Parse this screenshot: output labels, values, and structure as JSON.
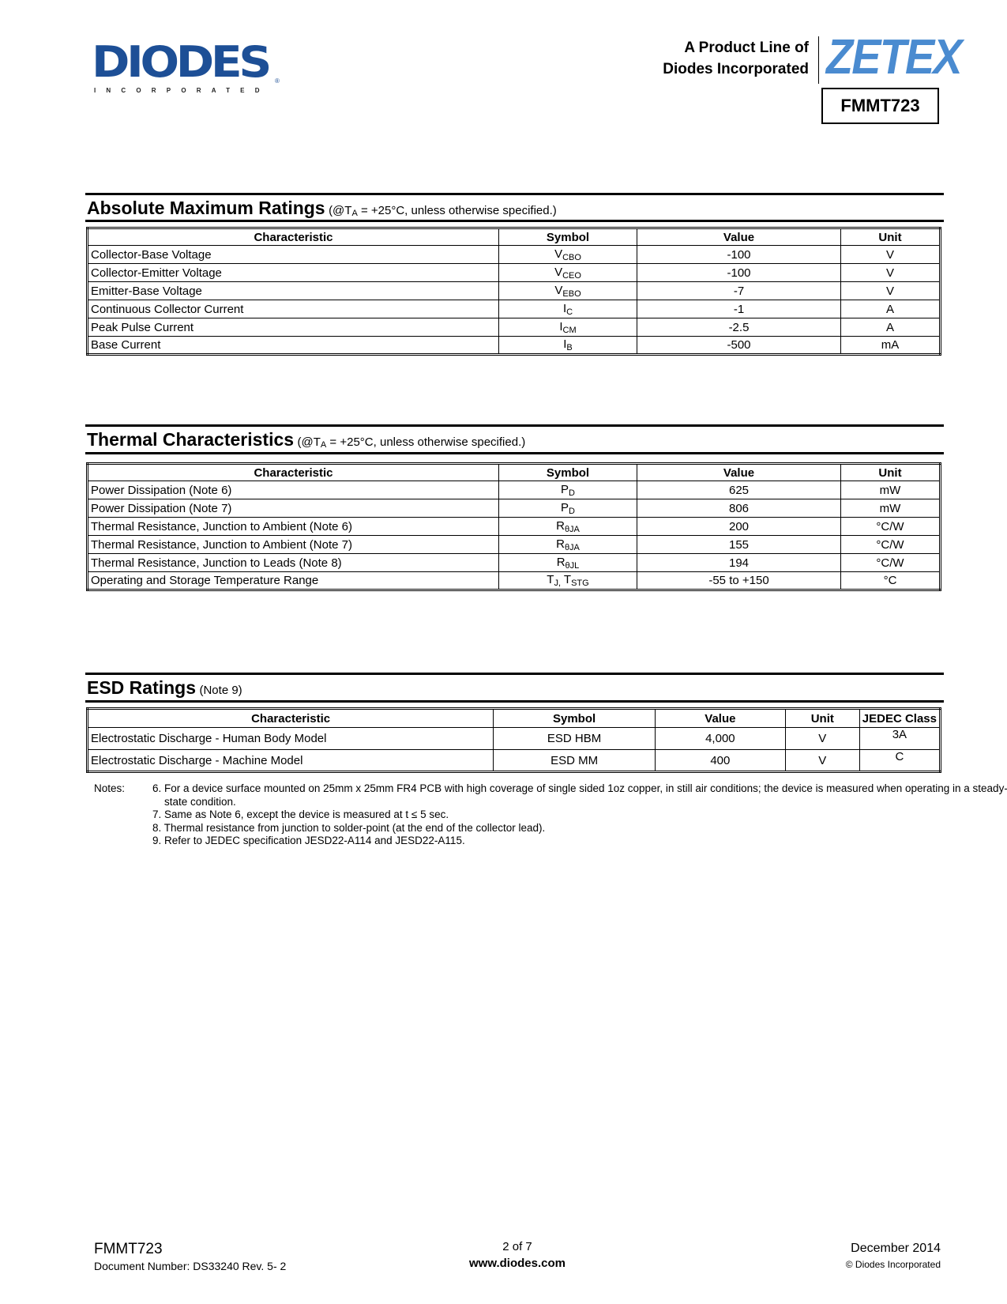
{
  "header": {
    "logo_text": "DIODES",
    "logo_subtext": "INCORPORATED",
    "product_line_1": "A Product Line of",
    "product_line_2": "Diodes Incorporated",
    "brand_logo": "ZETEX",
    "part_number": "FMMT723",
    "brand_color": "#4a8bd0",
    "logo_color": "#1d4f96"
  },
  "sections": [
    {
      "title": "Absolute Maximum Ratings",
      "cond_prefix": "(@T",
      "cond_sub": "A",
      "cond_suffix": " = +25°C, unless otherwise specified.)",
      "columns": [
        "Characteristic",
        "Symbol",
        "Value",
        "Unit"
      ],
      "rows": [
        {
          "characteristic": "Collector-Base Voltage",
          "symbol": "V",
          "symbol_sub": "CBO",
          "value": "-100",
          "unit": "V"
        },
        {
          "characteristic": "Collector-Emitter Voltage",
          "symbol": "V",
          "symbol_sub": "CEO",
          "value": "-100",
          "unit": "V"
        },
        {
          "characteristic": "Emitter-Base Voltage",
          "symbol": "V",
          "symbol_sub": "EBO",
          "value": "-7",
          "unit": "V"
        },
        {
          "characteristic": "Continuous Collector Current",
          "symbol": "I",
          "symbol_sub": "C",
          "value": "-1",
          "unit": "A"
        },
        {
          "characteristic": "Peak Pulse Current",
          "symbol": "I",
          "symbol_sub": "CM",
          "value": "-2.5",
          "unit": "A"
        },
        {
          "characteristic": "Base Current",
          "symbol": "I",
          "symbol_sub": "B",
          "value": "-500",
          "unit": "mA"
        }
      ]
    },
    {
      "title": "Thermal Characteristics",
      "cond_prefix": "(@T",
      "cond_sub": "A",
      "cond_suffix": " = +25°C, unless otherwise specified.)",
      "columns": [
        "Characteristic",
        "Symbol",
        "Value",
        "Unit"
      ],
      "rows": [
        {
          "characteristic": "Power Dissipation (Note 6)",
          "symbol": "P",
          "symbol_sub": "D",
          "value": "625",
          "unit": "mW"
        },
        {
          "characteristic": "Power Dissipation (Note 7)",
          "symbol": "P",
          "symbol_sub": "D",
          "value": "806",
          "unit": "mW"
        },
        {
          "characteristic": "Thermal Resistance, Junction to Ambient (Note 6)",
          "symbol": "R",
          "symbol_sub": "θJA",
          "value": "200",
          "unit": "°C/W"
        },
        {
          "characteristic": "Thermal Resistance, Junction to Ambient (Note 7)",
          "symbol": "R",
          "symbol_sub": "θJA",
          "value": "155",
          "unit": "°C/W"
        },
        {
          "characteristic": "Thermal Resistance, Junction to Leads (Note 8)",
          "symbol": "R",
          "symbol_sub": "θJL",
          "value": "194",
          "unit": "°C/W"
        },
        {
          "characteristic": "Operating and Storage Temperature Range",
          "symbol": "T",
          "symbol_sub": "J,",
          "symbol2": " T",
          "symbol2_sub": "STG",
          "value": "-55 to +150",
          "unit": "°C"
        }
      ]
    },
    {
      "title": "ESD Ratings",
      "cond_prefix": "(Note 9)",
      "cond_sub": "",
      "cond_suffix": "",
      "columns": [
        "Characteristic",
        "Symbol",
        "Value",
        "Unit",
        "JEDEC Class"
      ],
      "rows": [
        {
          "characteristic": "Electrostatic Discharge - Human Body Model",
          "symbol": "ESD HBM",
          "symbol_sub": "",
          "value": "4,000",
          "unit": "V",
          "jedec": "3A"
        },
        {
          "characteristic": "Electrostatic Discharge - Machine Model",
          "symbol": "ESD MM",
          "symbol_sub": "",
          "value": "400",
          "unit": "V",
          "jedec": "C"
        }
      ]
    }
  ],
  "notes": {
    "label": "Notes:",
    "items": [
      "6. For a device surface mounted on 25mm x 25mm FR4 PCB with high coverage of single sided 1oz copper, in still air conditions; the device is measured when operating in a steady-state condition.",
      "7. Same as Note 6, except the device is measured at t ≤ 5 sec.",
      "8. Thermal resistance from junction to solder-point (at the end of the collector lead).",
      "9. Refer to JEDEC specification JESD22-A114 and JESD22-A115."
    ]
  },
  "footer": {
    "part_number": "FMMT723",
    "document_number": "Document Number: DS33240 Rev. 5- 2",
    "page": "2 of 7",
    "website": "www.diodes.com",
    "date": "December 2014",
    "copyright": "© Diodes Incorporated"
  }
}
